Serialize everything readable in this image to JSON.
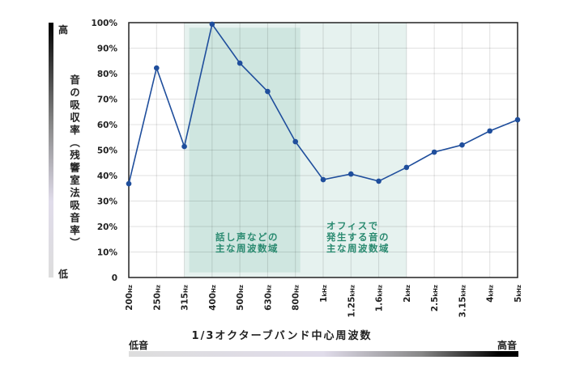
{
  "chart_data": {
    "type": "line",
    "title": "",
    "xlabel": "1/3オクターブバンド中心周波数",
    "ylabel": "音の吸収率（残響室法吸音率）",
    "categories": [
      {
        "num": "200",
        "unit": "Hz"
      },
      {
        "num": "250",
        "unit": "Hz"
      },
      {
        "num": "315",
        "unit": "Hz"
      },
      {
        "num": "400",
        "unit": "Hz"
      },
      {
        "num": "500",
        "unit": "Hz"
      },
      {
        "num": "630",
        "unit": "Hz"
      },
      {
        "num": "800",
        "unit": "Hz"
      },
      {
        "num": "1",
        "unit": "kHz"
      },
      {
        "num": "1.25",
        "unit": "kHz"
      },
      {
        "num": "1.6",
        "unit": "kHz"
      },
      {
        "num": "2",
        "unit": "kHz"
      },
      {
        "num": "2.5",
        "unit": "kHz"
      },
      {
        "num": "3.15",
        "unit": "kHz"
      },
      {
        "num": "4",
        "unit": "kHz"
      },
      {
        "num": "5",
        "unit": "kHz"
      }
    ],
    "values": [
      36.8,
      82.2,
      51.4,
      99.4,
      84.1,
      73.0,
      53.3,
      38.4,
      40.6,
      37.8,
      43.2,
      49.2,
      52.0,
      57.5,
      61.9
    ],
    "ylim": [
      0,
      100
    ],
    "yticks": [
      "0",
      "10%",
      "20%",
      "30%",
      "40%",
      "50%",
      "60%",
      "70%",
      "80%",
      "90%",
      "100%"
    ],
    "grid": true,
    "line_color": "#1f4e9c",
    "regions": [
      {
        "label_lines": [
          "オフィスで",
          "発生する音の",
          "主な周波数域"
        ],
        "from": "315Hz",
        "to": "2kHz",
        "color": "#e6f2ef"
      },
      {
        "label_lines": [
          "話し声などの",
          "主な周波数域"
        ],
        "from": "315Hz",
        "to": "800Hz",
        "color": "#cfe6e0"
      }
    ],
    "region_text_color": "#2a8a70",
    "y_scale_labels": {
      "high": "高",
      "low": "低"
    },
    "x_scale_labels": {
      "low": "低音",
      "high": "高音"
    }
  }
}
